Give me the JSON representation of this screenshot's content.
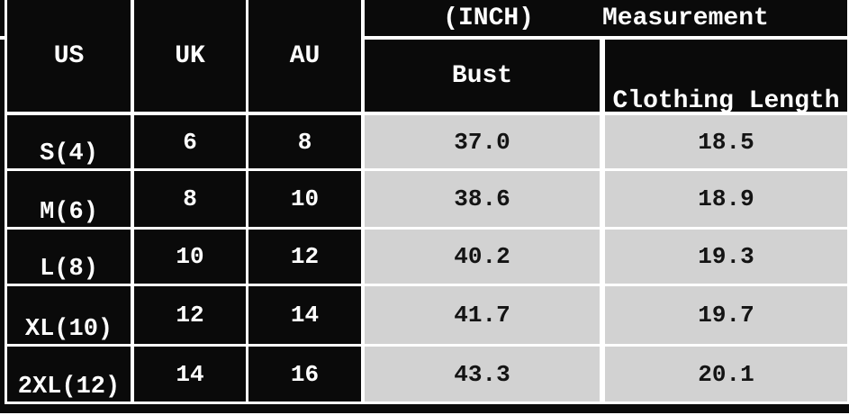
{
  "chart_data": {
    "type": "table",
    "columns": [
      "US",
      "UK",
      "AU",
      "Bust",
      "Clothing Length"
    ],
    "unit_note": "(INCH)",
    "header": {
      "us": "US",
      "uk": "UK",
      "au": "AU",
      "unit": "(INCH)",
      "measurement": "Measurement",
      "bust": "Bust",
      "clothing_length": "Clothing Length"
    },
    "rows": [
      {
        "size": "S(4)",
        "uk": "6",
        "au": "8",
        "bust": "37.0",
        "clothing_length": "18.5"
      },
      {
        "size": "M(6)",
        "uk": "8",
        "au": "10",
        "bust": "38.6",
        "clothing_length": "18.9"
      },
      {
        "size": "L(8)",
        "uk": "10",
        "au": "12",
        "bust": "40.2",
        "clothing_length": "19.3"
      },
      {
        "size": "XL(10)",
        "uk": "12",
        "au": "14",
        "bust": "41.7",
        "clothing_length": "19.7"
      },
      {
        "size": "2XL(12)",
        "uk": "14",
        "au": "16",
        "bust": "43.3",
        "clothing_length": "20.1"
      }
    ],
    "layout_hints": {
      "header_background": "#0a0a0a",
      "size_column_background": "#0a0a0a",
      "value_cell_background": "#d2d2d2",
      "grid_border_color": "#ffffff",
      "header_text_color": "#ffffff",
      "value_text_color": "#141414"
    }
  }
}
